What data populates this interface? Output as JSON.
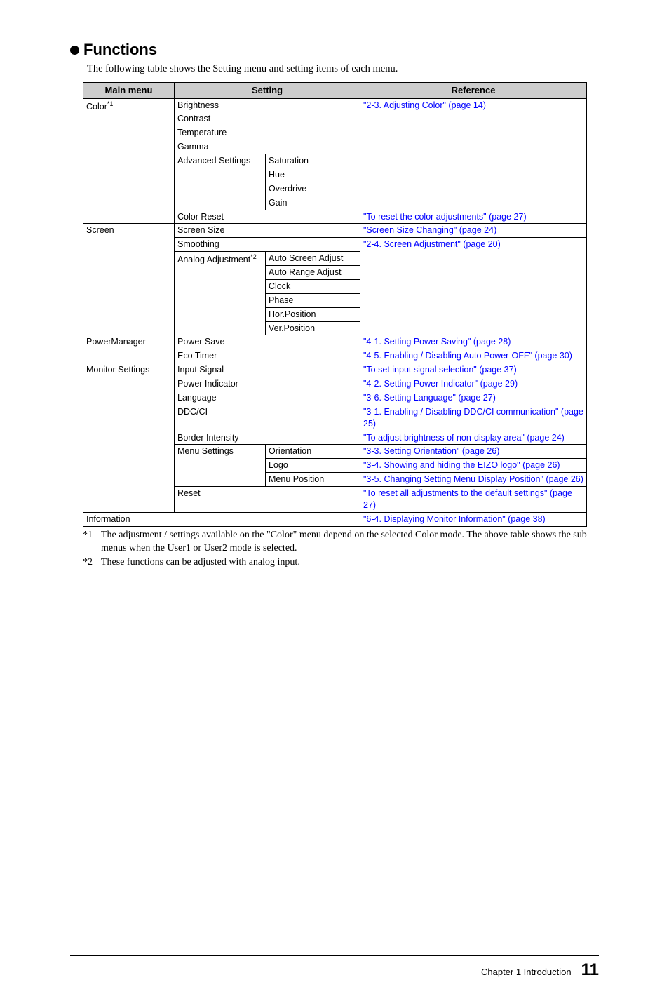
{
  "colors": {
    "header_bg": "#cdcdcd",
    "link": "#0000ff",
    "text": "#000000",
    "background": "#ffffff",
    "border": "#000000"
  },
  "heading": "Functions",
  "intro": "The following table shows the Setting menu and setting items of each menu.",
  "headers": {
    "main_menu": "Main menu",
    "setting": "Setting",
    "reference": "Reference"
  },
  "color_section": {
    "label": "Color",
    "sup": "*1",
    "brightness": "Brightness",
    "contrast": "Contrast",
    "temperature": "Temperature",
    "gamma": "Gamma",
    "advanced": "Advanced Settings",
    "saturation": "Saturation",
    "hue": "Hue",
    "overdrive": "Overdrive",
    "gain": "Gain",
    "ref_adjust": "\"2-3. Adjusting Color\" (page 14)",
    "color_reset": "Color Reset",
    "ref_reset": "\"To reset the color adjustments\" (page 27)"
  },
  "screen_section": {
    "label": "Screen",
    "screen_size": "Screen Size",
    "ref_size": "\"Screen Size Changing\" (page 24)",
    "smoothing": "Smoothing",
    "analog_label": "Analog Adjustment",
    "analog_sup": "*2",
    "auto_screen": "Auto Screen Adjust",
    "auto_range": "Auto Range Adjust",
    "clock": "Clock",
    "phase": "Phase",
    "hor": "Hor.Position",
    "ver": "Ver.Position",
    "ref_adjust": "\"2-4. Screen Adjustment\" (page 20)"
  },
  "power_section": {
    "label": "PowerManager",
    "power_save": "Power Save",
    "ref_save": "\"4-1. Setting Power Saving\" (page 28)",
    "eco_timer": "Eco Timer",
    "ref_eco": "\"4-5. Enabling / Disabling Auto Power-OFF\" (page 30)"
  },
  "monitor_section": {
    "label": "Monitor Settings",
    "input_signal": "Input Signal",
    "ref_input": "\"To set input signal selection\" (page 37)",
    "power_indicator": "Power Indicator",
    "ref_power_ind": "\"4-2. Setting Power Indicator\" (page 29)",
    "language": "Language",
    "ref_language": "\"3-6. Setting Language\" (page 27)",
    "ddcci": "DDC/CI",
    "ref_ddcci": "\"3-1. Enabling / Disabling DDC/CI communication\" (page 25)",
    "border": "Border Intensity",
    "ref_border": "\"To adjust brightness of non-display area\" (page 24)",
    "menu_settings": "Menu Settings",
    "orientation": "Orientation",
    "ref_orientation": "\"3-3. Setting Orientation\" (page 26)",
    "logo": "Logo",
    "ref_logo": "\"3-4. Showing and hiding the EIZO logo\" (page 26)",
    "menu_position": "Menu Position",
    "ref_menu_pos": "\"3-5. Changing Setting Menu Display Position\" (page 26)",
    "reset": "Reset",
    "ref_reset": "\"To reset all adjustments to the default settings\" (page 27)"
  },
  "information_section": {
    "label": "Information",
    "ref": "\"6-4. Displaying Monitor Information\" (page 38)"
  },
  "footnotes": {
    "f1_marker": "*1",
    "f1_text": "The adjustment / settings available on the \"Color\" menu depend on the selected Color mode. The above table shows the sub menus when the User1 or User2 mode is selected.",
    "f2_marker": "*2",
    "f2_text": "These functions can be adjusted with analog input."
  },
  "footer": {
    "chapter": "Chapter 1 Introduction",
    "page": "11"
  }
}
